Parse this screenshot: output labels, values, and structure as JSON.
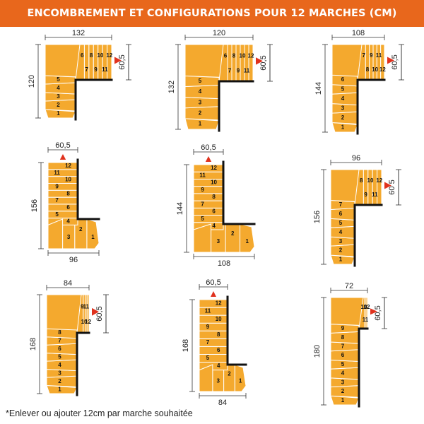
{
  "title": "ENCOMBREMENT ET CONFIGURATIONS POUR 12 MARCHES (CM)",
  "footnote": "*Enlever ou ajouter 12cm par marche souhaitée",
  "colors": {
    "banner": "#e8671c",
    "step": "#f4a92e",
    "arrow": "#e0321e",
    "wall": "#111111"
  },
  "configurations": [
    {
      "top_dimension": "132",
      "side_dimension": "120",
      "landing_dimension": "60,5",
      "landing_side": "right",
      "step_labels": [
        "1",
        "2",
        "3",
        "4",
        "5",
        "6",
        "7",
        "8",
        "9",
        "10",
        "11",
        "12"
      ]
    },
    {
      "top_dimension": "120",
      "side_dimension": "132",
      "landing_dimension": "60,5",
      "landing_side": "right",
      "step_labels": [
        "1",
        "2",
        "3",
        "4",
        "5",
        "6",
        "7",
        "8",
        "9",
        "10",
        "11",
        "12"
      ]
    },
    {
      "top_dimension": "108",
      "side_dimension": "144",
      "landing_dimension": "60,5",
      "landing_side": "right",
      "step_labels": [
        "1",
        "2",
        "3",
        "4",
        "5",
        "6",
        "7",
        "8",
        "9",
        "10",
        "11",
        "12"
      ]
    },
    {
      "bottom_dimension": "96",
      "side_dimension": "156",
      "landing_dimension": "60,5",
      "landing_side": "top",
      "step_labels": [
        "1",
        "2",
        "3",
        "4",
        "5",
        "6",
        "7",
        "8",
        "9",
        "10",
        "11",
        "12"
      ]
    },
    {
      "bottom_dimension": "108",
      "side_dimension": "144",
      "landing_dimension": "60,5",
      "landing_side": "top",
      "step_labels": [
        "1",
        "2",
        "3",
        "4",
        "5",
        "6",
        "7",
        "8",
        "9",
        "10",
        "11",
        "12"
      ]
    },
    {
      "top_dimension": "96",
      "side_dimension": "156",
      "landing_dimension": "60 5",
      "landing_side": "right",
      "step_labels": [
        "1",
        "2",
        "3",
        "4",
        "5",
        "6",
        "7",
        "8",
        "9",
        "10",
        "11",
        "12"
      ]
    },
    {
      "top_dimension": "84",
      "side_dimension": "168",
      "landing_dimension": "60,5",
      "landing_side": "right",
      "step_labels": [
        "1",
        "2",
        "3",
        "4",
        "5",
        "6",
        "7",
        "8",
        "9",
        "10",
        "11",
        "12"
      ]
    },
    {
      "bottom_dimension": "84",
      "side_dimension": "168",
      "landing_dimension": "60,5",
      "landing_side": "top",
      "step_labels": [
        "1",
        "2",
        "3",
        "4",
        "5",
        "6",
        "7",
        "8",
        "9",
        "10",
        "11",
        "12"
      ]
    },
    {
      "top_dimension": "72",
      "side_dimension": "180",
      "landing_dimension": "60,5",
      "landing_side": "right",
      "step_labels": [
        "1",
        "2",
        "3",
        "4",
        "5",
        "6",
        "7",
        "8",
        "9",
        "10",
        "11",
        "12"
      ]
    }
  ]
}
